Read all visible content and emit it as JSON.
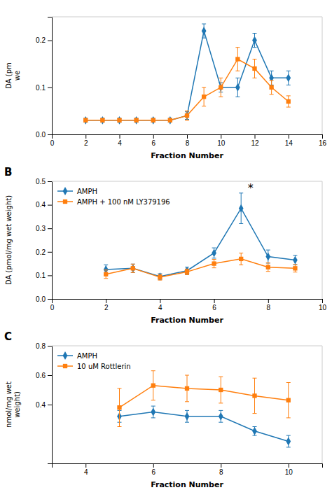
{
  "chart_data": [
    {
      "type": "line",
      "x_label": "Fraction Number",
      "y_label": "DA (pm\nwe",
      "x": [
        2,
        3,
        4,
        5,
        6,
        7,
        8,
        9,
        10,
        11,
        12,
        13,
        14
      ],
      "series": [
        {
          "marker": "diamond",
          "line_style": "solid",
          "values": [
            0.03,
            0.03,
            0.03,
            0.03,
            0.03,
            0.03,
            0.04,
            0.22,
            0.1,
            0.1,
            0.2,
            0.12,
            0.12
          ],
          "yerr": [
            0.004,
            0.004,
            0.004,
            0.004,
            0.004,
            0.004,
            0.008,
            0.015,
            0.01,
            0.02,
            0.015,
            0.015,
            0.015
          ]
        },
        {
          "marker": "square",
          "line_style": "solid",
          "values": [
            0.03,
            0.03,
            0.03,
            0.03,
            0.03,
            0.03,
            0.04,
            0.08,
            0.1,
            0.16,
            0.14,
            0.1,
            0.07
          ],
          "yerr": [
            0.004,
            0.004,
            0.004,
            0.004,
            0.004,
            0.004,
            0.01,
            0.02,
            0.02,
            0.025,
            0.02,
            0.015,
            0.012
          ]
        }
      ],
      "xlim": [
        0,
        16
      ],
      "xticks": [
        0,
        2,
        4,
        6,
        8,
        10,
        12,
        14,
        16
      ],
      "ylim": [
        0,
        0.25
      ],
      "yticks": [
        {
          "value": 0,
          "label": "0.0"
        },
        0.1,
        0.2
      ],
      "grid": false
    },
    {
      "type": "line",
      "title": "B",
      "x_label": "Fraction Number",
      "y_label": "DA (pmol/mg wet weight)",
      "x": [
        2,
        3,
        4,
        5,
        6,
        7,
        8,
        9
      ],
      "series": [
        {
          "name": "AMPH",
          "marker": "diamond",
          "line_style": "solid",
          "values": [
            0.125,
            0.13,
            0.095,
            0.12,
            0.195,
            0.385,
            0.18,
            0.165
          ],
          "yerr": [
            0.02,
            0.018,
            0.012,
            0.015,
            0.022,
            0.065,
            0.028,
            0.02
          ]
        },
        {
          "name": "AMPH + 100 nM LY379196",
          "marker": "square",
          "line_style": "solid",
          "values": [
            0.105,
            0.13,
            0.092,
            0.115,
            0.15,
            0.17,
            0.135,
            0.13
          ],
          "yerr": [
            0.018,
            0.018,
            0.012,
            0.012,
            0.018,
            0.025,
            0.018,
            0.016
          ]
        }
      ],
      "annotations": [
        {
          "text": "*",
          "x": 7.35,
          "y": 0.455
        }
      ],
      "xlim": [
        0,
        10
      ],
      "xticks": [
        0,
        2,
        4,
        6,
        8,
        10
      ],
      "ylim": [
        0.0,
        0.5
      ],
      "yticks": [
        {
          "value": 0.0,
          "label": "0.0"
        },
        0.1,
        0.2,
        0.3,
        0.4,
        0.5
      ],
      "legend": "upper left",
      "grid": false
    },
    {
      "type": "line",
      "title": "C",
      "x_label": "Fraction Number",
      "y_label": "nmol/mg wet\nweight)",
      "x": [
        5,
        6,
        7,
        8,
        9,
        10
      ],
      "series": [
        {
          "name": "AMPH",
          "marker": "diamond",
          "line_style": "solid",
          "values": [
            0.32,
            0.35,
            0.32,
            0.32,
            0.22,
            0.15
          ],
          "yerr": [
            0.04,
            0.04,
            0.04,
            0.04,
            0.03,
            0.04
          ]
        },
        {
          "name": "10 uM Rottlerin",
          "marker": "square",
          "line_style": "solid",
          "values": [
            0.38,
            0.53,
            0.51,
            0.5,
            0.46,
            0.43
          ],
          "yerr": [
            0.13,
            0.1,
            0.09,
            0.09,
            0.12,
            0.12
          ]
        }
      ],
      "xlim": [
        3,
        11
      ],
      "xticks": [
        4,
        6,
        8,
        10
      ],
      "ylim": [
        0,
        0.8
      ],
      "yticks": [
        0.4,
        0.6,
        0.8
      ],
      "legend": "upper left",
      "grid": false
    }
  ]
}
